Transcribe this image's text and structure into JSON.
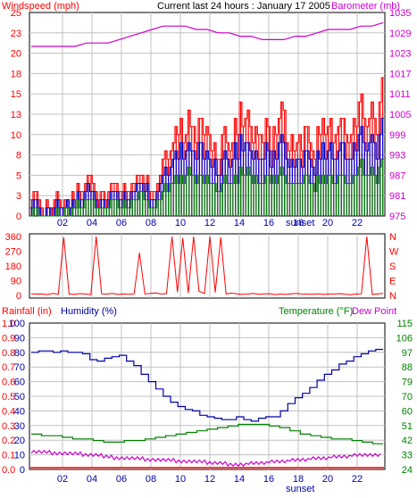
{
  "colors": {
    "wind": "#ff0000",
    "gust_blue": "#0000cc",
    "gust_green": "#008000",
    "barometer": "#cc00cc",
    "direction": "#ff0000",
    "humidity": "#0000aa",
    "temperature": "#008000",
    "dewpoint": "#cc00cc",
    "rainfall": "#ff0000",
    "grid": "#c0c0c0",
    "frame": "#000000"
  },
  "chart_data": [
    {
      "type": "bar",
      "title": "Current last 24 hours : January 17 2005",
      "left_label": "Windspeed (mph)",
      "right_label": "Barometer (mb)",
      "yticks_left": [
        "0",
        "3",
        "5",
        "8",
        "10",
        "13",
        "15",
        "18",
        "20",
        "23",
        "25"
      ],
      "yticks_right": [
        "975",
        "981",
        "987",
        "993",
        "999",
        "1005",
        "1011",
        "1017",
        "1023",
        "1029",
        "1035"
      ],
      "xticks": [
        "02",
        "04",
        "06",
        "08",
        "10",
        "12",
        "14",
        "16",
        "18",
        "20",
        "22"
      ],
      "x_annotation": "sunset",
      "ylim": [
        0,
        25
      ],
      "ylim_right": [
        975,
        1035
      ],
      "wind_mph": [
        2,
        3,
        3,
        2,
        1,
        0,
        2,
        1,
        1,
        2,
        3,
        2,
        1,
        2,
        2,
        1,
        3,
        2,
        4,
        3,
        3,
        4,
        5,
        5,
        4,
        3,
        2,
        3,
        3,
        2,
        3,
        4,
        4,
        4,
        3,
        3,
        4,
        3,
        3,
        4,
        4,
        5,
        5,
        5,
        4,
        5,
        3,
        3,
        3,
        4,
        5,
        7,
        8,
        7,
        8,
        9,
        11,
        10,
        12,
        9,
        10,
        13,
        11,
        11,
        9,
        12,
        12,
        10,
        11,
        10,
        8,
        9,
        7,
        7,
        10,
        11,
        9,
        8,
        9,
        12,
        10,
        14,
        11,
        12,
        13,
        11,
        9,
        11,
        10,
        10,
        9,
        12,
        11,
        8,
        11,
        10,
        12,
        14,
        13,
        9,
        8,
        10,
        8,
        9,
        10,
        8,
        11,
        11,
        9,
        8,
        7,
        11,
        10,
        12,
        10,
        11,
        12,
        9,
        10,
        11,
        12,
        12,
        10,
        9,
        10,
        12,
        11,
        14,
        15,
        12,
        11,
        12,
        14,
        12,
        10,
        14,
        17
      ],
      "gust_blue_mph": [
        1,
        2,
        2,
        1,
        0,
        0,
        1,
        1,
        0,
        1,
        2,
        1,
        1,
        1,
        2,
        1,
        2,
        1,
        3,
        2,
        2,
        3,
        4,
        3,
        3,
        2,
        1,
        2,
        2,
        1,
        2,
        3,
        3,
        3,
        2,
        2,
        3,
        2,
        2,
        3,
        3,
        4,
        4,
        4,
        3,
        4,
        2,
        2,
        2,
        3,
        4,
        5,
        6,
        5,
        6,
        7,
        8,
        7,
        9,
        7,
        8,
        9,
        8,
        8,
        7,
        9,
        9,
        7,
        8,
        7,
        6,
        7,
        5,
        5,
        7,
        8,
        7,
        6,
        7,
        9,
        7,
        10,
        8,
        9,
        9,
        8,
        7,
        8,
        7,
        7,
        7,
        9,
        8,
        6,
        8,
        7,
        9,
        10,
        9,
        7,
        6,
        7,
        6,
        7,
        7,
        6,
        8,
        8,
        7,
        6,
        5,
        8,
        7,
        9,
        7,
        8,
        9,
        7,
        7,
        8,
        9,
        9,
        7,
        7,
        7,
        9,
        8,
        10,
        11,
        9,
        8,
        9,
        10,
        9,
        7,
        10,
        12
      ],
      "gust_green_mph": [
        0,
        1,
        1,
        0,
        0,
        0,
        0,
        0,
        0,
        0,
        1,
        0,
        0,
        1,
        1,
        0,
        1,
        1,
        2,
        1,
        1,
        2,
        2,
        2,
        2,
        1,
        1,
        1,
        1,
        1,
        1,
        2,
        2,
        2,
        1,
        1,
        2,
        1,
        1,
        2,
        2,
        2,
        3,
        3,
        2,
        2,
        1,
        1,
        1,
        2,
        2,
        3,
        4,
        3,
        4,
        4,
        5,
        4,
        5,
        4,
        5,
        6,
        5,
        5,
        4,
        5,
        5,
        4,
        5,
        4,
        4,
        4,
        3,
        3,
        4,
        5,
        4,
        4,
        4,
        5,
        4,
        6,
        5,
        5,
        6,
        5,
        4,
        5,
        4,
        4,
        4,
        5,
        5,
        4,
        5,
        4,
        5,
        6,
        5,
        4,
        4,
        4,
        4,
        4,
        4,
        4,
        5,
        5,
        4,
        4,
        3,
        5,
        4,
        5,
        4,
        5,
        5,
        4,
        4,
        5,
        5,
        5,
        4,
        4,
        4,
        5,
        5,
        6,
        7,
        5,
        5,
        5,
        6,
        5,
        4,
        6,
        7
      ],
      "barometer_mb": [
        1025,
        1025,
        1025,
        1025,
        1025,
        1026,
        1026,
        1026,
        1027,
        1028,
        1029,
        1030,
        1031,
        1031,
        1031,
        1030,
        1030,
        1029,
        1029,
        1028,
        1028,
        1027,
        1027,
        1027,
        1028,
        1028,
        1029,
        1030,
        1030,
        1030,
        1031,
        1031,
        1032
      ]
    },
    {
      "type": "scatter",
      "title": "",
      "yticks_left": [
        "0",
        "90",
        "180",
        "270",
        "360"
      ],
      "yticks_right": [
        "N",
        "E",
        "S",
        "W",
        "N"
      ],
      "ylim": [
        0,
        360
      ],
      "direction_deg": [
        10,
        8,
        9,
        5,
        12,
        7,
        355,
        8,
        6,
        11,
        9,
        5,
        360,
        10,
        8,
        12,
        6,
        9,
        7,
        10,
        260,
        8,
        12,
        15,
        9,
        11,
        360,
        20,
        350,
        15,
        360,
        25,
        12,
        360,
        18,
        355,
        9,
        14,
        10,
        6,
        8,
        12,
        7,
        9,
        11,
        5,
        8,
        6,
        10,
        12,
        9,
        8,
        7,
        10,
        6,
        8,
        9,
        11,
        7,
        5,
        8,
        10,
        360,
        6,
        9,
        12
      ]
    },
    {
      "type": "line",
      "left_label": "Rainfall (in)",
      "humidity_label": "Humidity (%)",
      "temperature_label": "Temperature (°F)",
      "dewpoint_label": "Dew Point",
      "yticks_rain": [
        "0.0",
        "0.1",
        "0.2",
        "0.3",
        "0.4",
        "0.5",
        "0.6",
        "0.7",
        "0.8",
        "0.9",
        "1.0"
      ],
      "yticks_humidity": [
        "0",
        "10",
        "20",
        "30",
        "40",
        "50",
        "60",
        "70",
        "80",
        "90",
        "100"
      ],
      "yticks_temp": [
        "24",
        "33",
        "42",
        "51",
        "60",
        "70",
        "79",
        "88",
        "97",
        "106",
        "115"
      ],
      "xticks": [
        "02",
        "04",
        "06",
        "08",
        "10",
        "12",
        "14",
        "16",
        "18",
        "20",
        "22"
      ],
      "x_annotation": "sunset",
      "ylim_humidity": [
        0,
        100
      ],
      "ylim_temp": [
        24,
        115
      ],
      "humidity_pct": [
        80,
        81,
        81,
        80,
        81,
        80,
        80,
        79,
        75,
        74,
        76,
        77,
        78,
        74,
        71,
        65,
        60,
        55,
        50,
        46,
        43,
        41,
        40,
        37,
        36,
        35,
        34,
        34,
        36,
        34,
        33,
        35,
        36,
        36,
        40,
        45,
        49,
        52,
        56,
        61,
        65,
        68,
        72,
        74,
        77,
        79,
        81,
        82
      ],
      "temperature_f": [
        46,
        45,
        45,
        44,
        43,
        43,
        42,
        41,
        41,
        42,
        42,
        43,
        44,
        45,
        46,
        47,
        48,
        49,
        50,
        51,
        52,
        52,
        52,
        51,
        50,
        48,
        46,
        45,
        44,
        43,
        43,
        42,
        41,
        40
      ],
      "dewpoint_f": [
        35,
        35,
        34,
        34,
        34,
        33,
        33,
        32,
        31,
        31,
        31,
        30,
        30,
        30,
        29,
        29,
        29,
        28,
        28,
        27,
        27,
        28,
        28,
        29,
        29,
        30,
        30,
        31,
        31,
        32,
        32,
        33,
        33,
        33
      ],
      "rainfall_in": [
        0.0,
        0.0,
        0.0,
        0.0,
        0.0,
        0.0,
        0.0,
        0.0,
        0.0,
        0.0,
        0.0,
        0.0,
        0.0,
        0.0,
        0.0,
        0.0,
        0.0,
        0.0,
        0.0,
        0.0,
        0.0,
        0.0,
        0.0,
        0.0,
        0.0,
        0.0,
        0.0,
        0.0,
        0.0,
        0.0,
        0.0,
        0.0,
        0.0
      ]
    }
  ]
}
